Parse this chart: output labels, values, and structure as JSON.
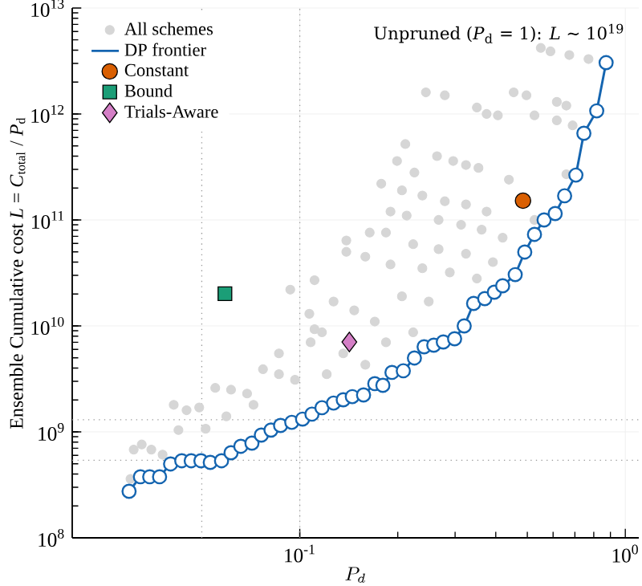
{
  "chart_data": {
    "type": "scatter",
    "xlabel": "P_d",
    "ylabel": "Ensemble Cumulative cost *L* = *C*$_{total}$ / *P*$_{d}$",
    "log": "xy",
    "grid": true,
    "legend": "top left",
    "xlim": [
      0.02,
      1.1
    ],
    "ylim": [
      100000000.0,
      10000000000000.0
    ],
    "xticks": [
      {
        "value": 0.1,
        "label": "10$^{-1}$"
      },
      {
        "value": 1,
        "label": "10$^{0}$"
      }
    ],
    "yticks": [
      {
        "value": 100000000.0,
        "label": "10$^{8}$"
      },
      {
        "value": 1000000000.0,
        "label": "10$^{9}$"
      },
      {
        "value": 10000000000.0,
        "label": "10$^{10}$"
      },
      {
        "value": 100000000000.0,
        "label": "10$^{11}$"
      },
      {
        "value": 1000000000000.0,
        "label": "10$^{12}$"
      },
      {
        "value": 10000000000000.0,
        "label": "10$^{13}$"
      }
    ],
    "annotations": [
      "Unpruned (*P*$_{d}$ = 1): *L* ∼ 10$^{19}$"
    ],
    "ref_lines": [
      {
        "axis": "x",
        "value": 0.05,
        "color": "#999999",
        "line_style": "dotted"
      },
      {
        "axis": "x",
        "value": 0.1,
        "color": "#999999",
        "line_style": "dotted"
      },
      {
        "axis": "y",
        "value": 1300000000.0,
        "color": "#999999",
        "line_style": "dotted"
      },
      {
        "axis": "y",
        "value": 540000000.0,
        "color": "#999999",
        "line_style": "dotted"
      }
    ],
    "series": [
      {
        "name": "All schemes",
        "marker": "circle",
        "color": "#d6d6d6",
        "x": [
          0.55,
          0.589,
          0.673,
          0.771,
          0.244,
          0.279,
          0.35,
          0.375,
          0.406,
          0.454,
          0.497,
          0.526,
          0.616,
          0.689,
          0.616,
          0.659,
          0.211,
          0.199,
          0.225,
          0.264,
          0.296,
          0.324,
          0.354,
          0.659,
          0.178,
          0.206,
          0.238,
          0.279,
          0.324,
          0.375,
          0.439,
          0.526,
          0.19,
          0.213,
          0.267,
          0.313,
          0.362,
          0.42,
          0.184,
          0.223,
          0.267,
          0.324,
          0.392,
          0.139,
          0.159,
          0.19,
          0.238,
          0.289,
          0.35,
          0.0302,
          0.0309,
          0.0327,
          0.035,
          0.0379,
          0.041,
          0.0449,
          0.0491,
          0.055,
          0.0615,
          0.0689,
          0.0771,
          0.0863,
          0.0967,
          0.107,
          0.108,
          0.0863,
          0.0721,
          0.0595,
          0.0514,
          0.0424,
          0.127,
          0.147,
          0.17,
          0.206,
          0.249,
          0.117,
          0.136,
          0.159,
          0.121,
          0.184,
          0.223,
          0.0935,
          0.111,
          0.139,
          0.164,
          0.111
        ],
        "values": [
          4200000000000.0,
          3900000000000.0,
          3600000000000.0,
          3300000000000.0,
          1600000000000.0,
          1500000000000.0,
          1150000000000.0,
          1000000000000.0,
          970000000000.0,
          1600000000000.0,
          1500000000000.0,
          970000000000.0,
          870000000000.0,
          780000000000.0,
          1300000000000.0,
          1200000000000.0,
          520000000000.0,
          360000000000.0,
          280000000000.0,
          400000000000.0,
          360000000000.0,
          330000000000.0,
          310000000000.0,
          270000000000.0,
          220000000000.0,
          190000000000.0,
          170000000000.0,
          150000000000.0,
          140000000000.0,
          120000000000.0,
          240000000000.0,
          100000000000.0,
          120000000000.0,
          110000000000.0,
          100000000000.0,
          90000000000.0,
          81000000000.0,
          68000000000.0,
          76000000000.0,
          59000000000.0,
          53000000000.0,
          48000000000.0,
          40000000000.0,
          50000000000.0,
          45000000000.0,
          38000000000.0,
          35000000000.0,
          32000000000.0,
          28000000000.0,
          360000000.0,
          680000000.0,
          760000000.0,
          680000000.0,
          610000000.0,
          1800000000.0,
          1600000000.0,
          1700000000.0,
          2600000000.0,
          2500000000.0,
          2300000000.0,
          3900000000.0,
          3500000000.0,
          3100000000.0,
          13000000000.0,
          7000000000.0,
          5500000000.0,
          1800000000.0,
          1400000000.0,
          1070000000.0,
          1040000000.0,
          17000000000.0,
          14000000000.0,
          11000000000.0,
          19000000000.0,
          17000000000.0,
          8700000000.0,
          5500000000.0,
          4300000000.0,
          3500000000.0,
          7000000000.0,
          8700000000.0,
          22000000000.0,
          27000000000.0,
          64000000000.0,
          76000000000.0,
          9300000000.0
        ]
      },
      {
        "name": "DP frontier",
        "type": "line",
        "marker": "circle",
        "color": "#1565b0",
        "x": [
          0.0299,
          0.0324,
          0.0346,
          0.0371,
          0.0401,
          0.0434,
          0.0464,
          0.0497,
          0.0531,
          0.0575,
          0.0615,
          0.0659,
          0.0713,
          0.0762,
          0.0816,
          0.0873,
          0.0945,
          0.102,
          0.109,
          0.117,
          0.127,
          0.136,
          0.145,
          0.157,
          0.17,
          0.18,
          0.192,
          0.208,
          0.225,
          0.241,
          0.258,
          0.276,
          0.299,
          0.32,
          0.342,
          0.37,
          0.396,
          0.42,
          0.459,
          0.491,
          0.526,
          0.563,
          0.609,
          0.651,
          0.705,
          0.746,
          0.817,
          0.873
        ],
        "values": [
          275000000.0,
          377000000.0,
          377000000.0,
          377000000.0,
          498000000.0,
          534000000.0,
          534000000.0,
          534000000.0,
          515000000.0,
          534000000.0,
          635000000.0,
          731000000.0,
          783000000.0,
          933000000.0,
          1040000000.0,
          1150000000.0,
          1230000000.0,
          1320000000.0,
          1470000000.0,
          1690000000.0,
          1870000000.0,
          2010000000.0,
          2150000000.0,
          2230000000.0,
          2850000000.0,
          2750000000.0,
          3640000000.0,
          3770000000.0,
          4980000000.0,
          6350000000.0,
          6580000000.0,
          7050000000.0,
          7560000000.0,
          10000000000.0,
          16300000000.0,
          18100000000.0,
          20800000000.0,
          23900000000.0,
          30500000000.0,
          49800000000.0,
          73100000000.0,
          100000000000.0,
          115000000000.0,
          169000000000.0,
          265000000000.0,
          658000000000.0,
          1070000000000.0,
          3050000000000.0
        ]
      },
      {
        "name": "Constant",
        "marker": "circle",
        "color": "#d95f02",
        "x": [
          0.485
        ],
        "values": [
          152000000000.0
        ]
      },
      {
        "name": "Bound",
        "marker": "square",
        "color": "#1b9e77",
        "x": [
          0.0589
        ],
        "values": [
          20100000000.0
        ]
      },
      {
        "name": "Trials-Aware",
        "marker": "diamond",
        "color": "#d47fc6",
        "x": [
          0.142
        ],
        "values": [
          7050000000.0
        ]
      }
    ]
  }
}
